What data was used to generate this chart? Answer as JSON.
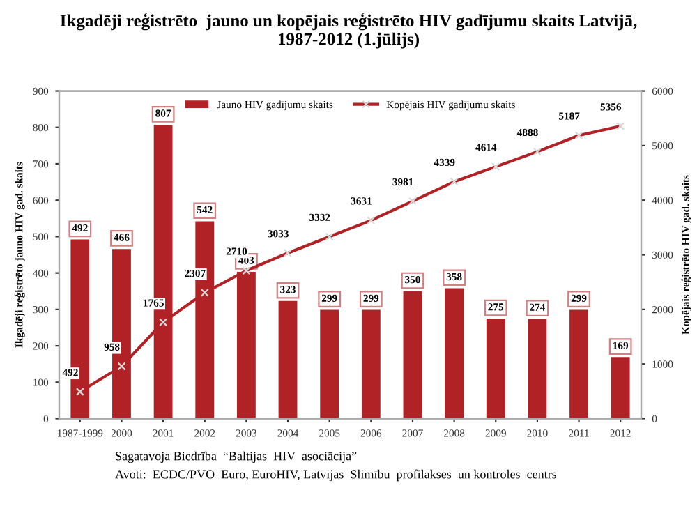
{
  "chart_data": {
    "type": "bar",
    "title": "Ikgadēji reģistrēto  jauno un kopējais reģistrēto HIV gadījumu skaits Latvijā,\n1987-2012 (1.jūlijs)",
    "categories": [
      "1987-1999",
      "2000",
      "2001",
      "2002",
      "2003",
      "2004",
      "2005",
      "2006",
      "2007",
      "2008",
      "2009",
      "2010",
      "2011",
      "2012"
    ],
    "series": [
      {
        "name": "Jauno HIV gadījumu skaits",
        "color": "#b02226",
        "values": [
          492,
          466,
          807,
          542,
          403,
          323,
          299,
          299,
          350,
          358,
          275,
          274,
          299,
          169
        ]
      },
      {
        "name": "Kopējais HIV gadījumu skaits",
        "type": "line",
        "axis": "y2",
        "color": "#b02226",
        "marker": "cross",
        "values": [
          492,
          958,
          1765,
          2307,
          2710,
          3033,
          3332,
          3631,
          3981,
          4339,
          4614,
          4888,
          5187,
          5356
        ]
      }
    ],
    "ylabel": "Ikgadēji reģistrēto jauno HIV gad. skaits",
    "y2label": "Kopējais reģistrēto HIV gad. skaits",
    "ylim": [
      0,
      900
    ],
    "yticks": [
      0,
      100,
      200,
      300,
      400,
      500,
      600,
      700,
      800,
      900
    ],
    "y2lim": [
      0,
      6000
    ],
    "y2ticks": [
      0,
      1000,
      2000,
      3000,
      4000,
      5000,
      6000
    ],
    "data_labels": true,
    "legend": "top",
    "grid": false,
    "annotations": [
      "Sagatavoja Biedrība  “Baltijas  HIV  asociācija”",
      "Avoti:  ECDC/PVO  Euro, EuroHIV, Latvijas  Slimību  profilakses  un kontroles  centrs"
    ]
  }
}
